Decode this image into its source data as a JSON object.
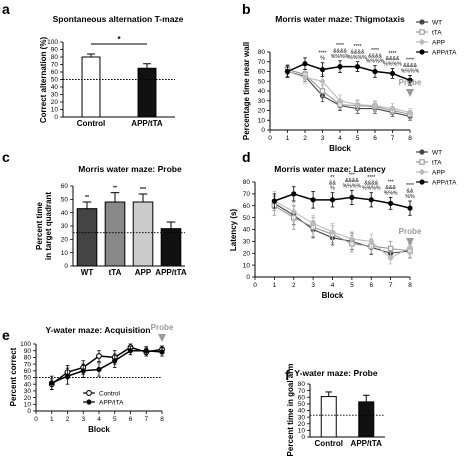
{
  "panel_letters": [
    "a",
    "b",
    "c",
    "d",
    "e",
    "f"
  ],
  "chart_data": [
    {
      "panel": "a",
      "type": "bar",
      "title": "Spontaneous alternation T-maze",
      "ylabel": "Correct alternation (%)",
      "xlabel": "",
      "ylim": [
        0,
        100
      ],
      "yticks": [
        0,
        10,
        20,
        30,
        40,
        50,
        60,
        70,
        80,
        90,
        100
      ],
      "categories": [
        "Control",
        "APP/tTA"
      ],
      "values": [
        80,
        65
      ],
      "errors": [
        4,
        6
      ],
      "colors": [
        "#ffffff",
        "#111111"
      ],
      "chance_line": 50,
      "significance": [
        {
          "pair": [
            0,
            1
          ],
          "label": "*"
        }
      ]
    },
    {
      "panel": "b",
      "type": "line",
      "title": "Morris water maze: Thigmotaxis",
      "ylabel": "Percentage time near wall",
      "xlabel": "Block",
      "xlim": [
        0,
        8
      ],
      "xticks": [
        0,
        1,
        2,
        3,
        4,
        5,
        6,
        7,
        8
      ],
      "ylim": [
        0,
        80
      ],
      "yticks": [
        0,
        10,
        20,
        30,
        40,
        50,
        60,
        70,
        80
      ],
      "x": [
        1,
        2,
        3,
        4,
        5,
        6,
        7,
        8
      ],
      "series": [
        {
          "name": "WT",
          "values": [
            60,
            55,
            35,
            25,
            22,
            22,
            18,
            14
          ],
          "errors": [
            5,
            5,
            6,
            5,
            5,
            5,
            4,
            4
          ],
          "color": "#444444",
          "marker": "circle"
        },
        {
          "name": "tTA",
          "values": [
            62,
            57,
            40,
            26,
            25,
            24,
            20,
            16
          ],
          "errors": [
            5,
            5,
            6,
            5,
            5,
            5,
            4,
            4
          ],
          "color": "#999999",
          "marker": "square"
        },
        {
          "name": "APP",
          "values": [
            60,
            54,
            50,
            30,
            26,
            25,
            22,
            18
          ],
          "errors": [
            6,
            6,
            7,
            6,
            5,
            5,
            5,
            4
          ],
          "color": "#bbbbbb",
          "marker": "diamond"
        },
        {
          "name": "APP/tTA",
          "values": [
            60,
            68,
            62,
            65,
            65,
            60,
            58,
            51
          ],
          "errors": [
            6,
            6,
            7,
            6,
            5,
            6,
            5,
            5
          ],
          "color": "#000000",
          "marker": "circle"
        }
      ],
      "annotations": [
        {
          "x": 3,
          "lines": [
            "****",
            "%"
          ]
        },
        {
          "x": 4,
          "lines": [
            "****",
            "&&&&",
            "%%%%"
          ]
        },
        {
          "x": 5,
          "lines": [
            "****",
            "&&&&",
            "%%%%"
          ]
        },
        {
          "x": 6,
          "lines": [
            "****",
            "&&&&",
            "%%%%"
          ]
        },
        {
          "x": 7,
          "lines": [
            "****",
            "&&&&",
            "%%%%"
          ]
        },
        {
          "x": 8,
          "lines": [
            "****",
            "&&&&",
            "%%%%"
          ]
        }
      ],
      "probe_label": "Probe",
      "probe_x": 8,
      "legend": "right"
    },
    {
      "panel": "c",
      "type": "bar",
      "title": "Morris water maze: Probe",
      "ylabel": "Percent time in target quadrant",
      "xlabel": "",
      "ylim": [
        0,
        60
      ],
      "yticks": [
        0,
        10,
        20,
        30,
        40,
        50,
        60
      ],
      "categories": [
        "WT",
        "tTA",
        "APP",
        "APP/tTA"
      ],
      "values": [
        43,
        48,
        48,
        28
      ],
      "errors": [
        5,
        7,
        6,
        5
      ],
      "colors": [
        "#444444",
        "#888888",
        "#cccccc",
        "#111111"
      ],
      "chance_line": 25,
      "bar_annotations": [
        "**",
        "**",
        "***",
        ""
      ]
    },
    {
      "panel": "d",
      "type": "line",
      "title": "Morris water maze: Latency",
      "ylabel": "Latency (s)",
      "xlabel": "Block",
      "xlim": [
        0,
        8
      ],
      "xticks": [
        0,
        1,
        2,
        3,
        4,
        5,
        6,
        7,
        8
      ],
      "ylim": [
        0,
        80
      ],
      "yticks": [
        0,
        10,
        20,
        30,
        40,
        50,
        60,
        70,
        80
      ],
      "x": [
        1,
        2,
        3,
        4,
        5,
        6,
        7,
        8
      ],
      "series": [
        {
          "name": "WT",
          "values": [
            62,
            52,
            40,
            33,
            30,
            25,
            20,
            22
          ],
          "errors": [
            6,
            8,
            7,
            6,
            7,
            6,
            5,
            6
          ],
          "color": "#444444",
          "marker": "circle"
        },
        {
          "name": "tTA",
          "values": [
            60,
            50,
            42,
            36,
            28,
            26,
            24,
            22
          ],
          "errors": [
            8,
            10,
            8,
            7,
            7,
            6,
            6,
            6
          ],
          "color": "#999999",
          "marker": "square"
        },
        {
          "name": "APP",
          "values": [
            64,
            55,
            45,
            38,
            32,
            30,
            16,
            25
          ],
          "errors": [
            8,
            8,
            7,
            7,
            6,
            6,
            5,
            6
          ],
          "color": "#bbbbbb",
          "marker": "diamond"
        },
        {
          "name": "APP/tTA",
          "values": [
            64,
            70,
            65,
            65,
            67,
            65,
            62,
            58
          ],
          "errors": [
            6,
            6,
            7,
            6,
            6,
            6,
            5,
            6
          ],
          "color": "#000000",
          "marker": "circle"
        }
      ],
      "annotations": [
        {
          "x": 4,
          "lines": [
            "**",
            "&&",
            "%"
          ]
        },
        {
          "x": 5,
          "lines": [
            "***",
            "&&&&",
            "%%%%"
          ]
        },
        {
          "x": 6,
          "lines": [
            "****",
            "&&&&",
            "%%%%"
          ]
        },
        {
          "x": 7,
          "lines": [
            "***",
            "&&&",
            "%%%"
          ]
        },
        {
          "x": 8,
          "lines": [
            "****",
            "&&",
            "%%"
          ]
        }
      ],
      "probe_label": "Probe",
      "probe_x": 8,
      "legend": "right"
    },
    {
      "panel": "e",
      "type": "line",
      "title": "Y-water maze: Acquisition",
      "ylabel": "Percent correct",
      "xlabel": "Block",
      "xlim": [
        0,
        8
      ],
      "xticks": [
        0,
        1,
        2,
        3,
        4,
        5,
        6,
        7,
        8
      ],
      "ylim": [
        0,
        100
      ],
      "yticks": [
        0,
        10,
        20,
        30,
        40,
        50,
        60,
        70,
        80,
        90,
        100
      ],
      "x": [
        1,
        2,
        3,
        4,
        5,
        6,
        7,
        8
      ],
      "series": [
        {
          "name": "Control",
          "values": [
            40,
            58,
            65,
            82,
            80,
            95,
            88,
            92
          ],
          "errors": [
            8,
            10,
            10,
            8,
            10,
            5,
            6,
            5
          ],
          "color": "#000000",
          "marker": "open-circle"
        },
        {
          "name": "APP/tTA",
          "values": [
            42,
            52,
            60,
            62,
            75,
            90,
            90,
            88
          ],
          "errors": [
            10,
            12,
            10,
            10,
            10,
            6,
            6,
            6
          ],
          "color": "#000000",
          "marker": "circle"
        }
      ],
      "chance_line": 50,
      "probe_label": "Probe",
      "probe_x": 8,
      "legend": "bottom-right"
    },
    {
      "panel": "f",
      "type": "bar",
      "title": "Y-water maze: Probe",
      "ylabel": "Percent time in goal arm",
      "xlabel": "",
      "ylim": [
        0,
        80
      ],
      "yticks": [
        0,
        10,
        20,
        30,
        40,
        50,
        60,
        70,
        80
      ],
      "categories": [
        "Control",
        "APP/tTA"
      ],
      "values": [
        61,
        53
      ],
      "errors": [
        7,
        10
      ],
      "colors": [
        "#ffffff",
        "#111111"
      ],
      "chance_line": 33
    }
  ]
}
